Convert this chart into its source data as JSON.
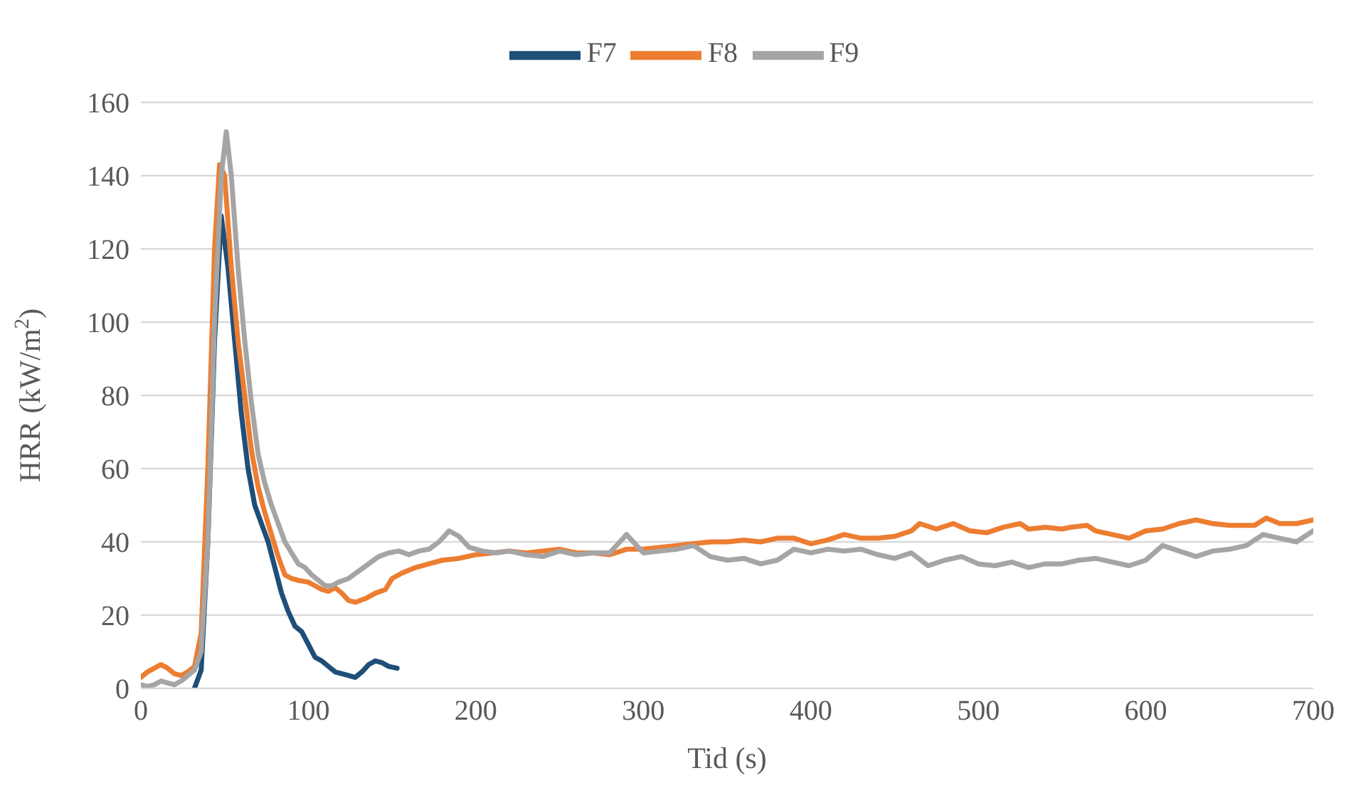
{
  "chart_data": {
    "type": "line",
    "xlabel": "Tid (s)",
    "ylabel": "HRR (kW/m$^{2}$)",
    "xlim": [
      0,
      700
    ],
    "xticks": [
      0,
      100,
      200,
      300,
      400,
      500,
      600,
      700
    ],
    "ylim": [
      0,
      160
    ],
    "yticks": [
      0,
      20,
      40,
      60,
      80,
      100,
      120,
      140,
      160
    ],
    "grid": "y",
    "legend": "top",
    "marker": "none",
    "line_style": "solid",
    "series": [
      {
        "name": "F7",
        "color": "#1f4e79",
        "x": [
          32,
          36,
          40,
          44,
          48,
          52,
          56,
          60,
          64,
          68,
          72,
          76,
          80,
          84,
          88,
          92,
          96,
          100,
          104,
          108,
          112,
          116,
          120,
          124,
          128,
          132,
          136,
          140,
          144,
          148,
          153
        ],
        "values": [
          0,
          5,
          40,
          95,
          129,
          115,
          95,
          75,
          60,
          50,
          45,
          40,
          33,
          26,
          21,
          17,
          15.5,
          12,
          8.5,
          7.5,
          6,
          4.5,
          4,
          3.5,
          3,
          4.5,
          6.5,
          7.5,
          7,
          6,
          5.5
        ]
      },
      {
        "name": "F8",
        "color": "#ed7d31",
        "x": [
          0,
          4,
          8,
          12,
          16,
          20,
          24,
          28,
          32,
          36,
          40,
          44,
          47,
          50,
          54,
          58,
          62,
          66,
          70,
          74,
          78,
          82,
          86,
          90,
          94,
          100,
          104,
          108,
          112,
          116,
          120,
          124,
          128,
          134,
          140,
          146,
          150,
          156,
          164,
          172,
          180,
          190,
          200,
          210,
          220,
          230,
          240,
          250,
          260,
          270,
          280,
          290,
          300,
          310,
          320,
          330,
          340,
          350,
          360,
          370,
          380,
          390,
          400,
          410,
          420,
          430,
          440,
          450,
          460,
          465,
          475,
          485,
          495,
          505,
          515,
          525,
          530,
          540,
          550,
          555,
          565,
          570,
          580,
          590,
          600,
          610,
          620,
          630,
          640,
          650,
          660,
          665,
          672,
          680,
          690,
          700
        ],
        "values": [
          3,
          4.5,
          5.5,
          6.5,
          5.5,
          4,
          3.5,
          4.5,
          6,
          15,
          60,
          120,
          143,
          140,
          115,
          95,
          80,
          65,
          55,
          48,
          42,
          36,
          31,
          30,
          29.5,
          29,
          28,
          27,
          26.5,
          27.5,
          26,
          24,
          23.5,
          24.5,
          26,
          27,
          30,
          31.5,
          33,
          34,
          35,
          35.5,
          36.5,
          37,
          37.5,
          37,
          37.5,
          38,
          37,
          37,
          36.5,
          38,
          38,
          38.5,
          39,
          39.5,
          40,
          40,
          40.5,
          40,
          41,
          41,
          39.5,
          40.5,
          42,
          41,
          41,
          41.5,
          43,
          45,
          43.5,
          45,
          43,
          42.5,
          44,
          45,
          43.5,
          44,
          43.5,
          44,
          44.5,
          43,
          42,
          41,
          43,
          43.5,
          45,
          46,
          45,
          44.5,
          44.5,
          44.5,
          46.5,
          45,
          45,
          46
        ]
      },
      {
        "name": "F9",
        "color": "#a5a5a5",
        "x": [
          0,
          4,
          8,
          12,
          16,
          20,
          24,
          28,
          32,
          36,
          40,
          44,
          48,
          51,
          54,
          58,
          62,
          66,
          70,
          74,
          78,
          82,
          86,
          90,
          94,
          98,
          102,
          106,
          110,
          114,
          118,
          124,
          130,
          136,
          142,
          148,
          154,
          160,
          166,
          172,
          178,
          184,
          190,
          196,
          204,
          212,
          220,
          230,
          240,
          250,
          260,
          270,
          280,
          286,
          290,
          296,
          300,
          310,
          320,
          330,
          340,
          350,
          360,
          370,
          380,
          390,
          400,
          410,
          420,
          430,
          440,
          450,
          460,
          470,
          480,
          490,
          500,
          510,
          520,
          530,
          540,
          550,
          560,
          570,
          580,
          590,
          600,
          610,
          620,
          630,
          640,
          650,
          660,
          670,
          680,
          690,
          700
        ],
        "values": [
          1,
          0.5,
          1,
          2,
          1.5,
          1,
          2,
          3.5,
          5,
          10,
          40,
          100,
          140,
          152,
          140,
          115,
          95,
          78,
          64,
          56,
          50,
          45,
          40,
          37,
          34,
          33,
          31,
          29.5,
          28,
          28,
          29,
          30,
          32,
          34,
          36,
          37,
          37.5,
          36.5,
          37.5,
          38,
          40,
          43,
          41.5,
          38.5,
          37.5,
          37,
          37.5,
          36.5,
          36,
          37.5,
          36.5,
          37,
          37,
          40,
          42,
          39,
          37,
          37.5,
          38,
          39,
          36,
          35,
          35.5,
          34,
          35,
          38,
          37,
          38,
          37.5,
          38,
          36.5,
          35.5,
          37,
          33.5,
          35,
          36,
          34,
          33.5,
          34.5,
          33,
          34,
          34,
          35,
          35.5,
          34.5,
          33.5,
          35,
          39,
          37.5,
          36,
          37.5,
          38,
          39,
          42,
          41,
          40,
          43
        ]
      }
    ]
  }
}
